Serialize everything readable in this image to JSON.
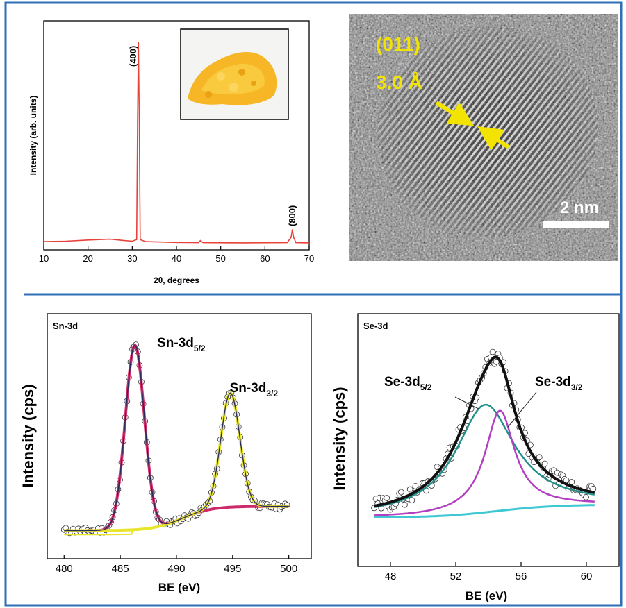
{
  "chart_data": [
    {
      "panel": "xrd",
      "type": "line",
      "xlabel": "2θ, degrees",
      "ylabel": "Intensity (arb. units)",
      "xlim": [
        10,
        70
      ],
      "xticks": [
        10,
        20,
        30,
        40,
        50,
        60,
        70
      ],
      "annotations": [
        {
          "text": "(400)",
          "x": 31.4
        },
        {
          "text": "(800)",
          "x": 66.2
        }
      ],
      "series": [
        {
          "color": "#e8413a",
          "x": [
            10,
            15,
            20,
            25,
            28,
            30,
            31,
            31.2,
            31.4,
            31.6,
            31.8,
            33,
            40,
            45,
            45.4,
            46,
            55,
            65,
            65.9,
            66.2,
            66.5,
            67,
            70
          ],
          "y": [
            2,
            2.2,
            2.8,
            3.2,
            2.6,
            2.2,
            3,
            60,
            100,
            60,
            3,
            2,
            1.6,
            1.5,
            2.5,
            1.5,
            1.4,
            1.5,
            4,
            8,
            4,
            1.5,
            1.4
          ]
        }
      ],
      "inset": {
        "content": "yellow SnSe powder photograph"
      }
    },
    {
      "panel": "tem",
      "type": "image",
      "annotations": [
        "(011)",
        "3.0 Å"
      ],
      "scalebar": "2 nm"
    },
    {
      "panel": "sn3d",
      "type": "scatter",
      "title": "Sn-3d",
      "xlabel": "BE (eV)",
      "ylabel": "Intensity (cps)",
      "xlim": [
        478.5,
        502
      ],
      "xticks": [
        480,
        485,
        490,
        495,
        500
      ],
      "peak_labels": [
        {
          "main": "Sn-3d",
          "sub": "5/2",
          "x": 486.3
        },
        {
          "main": "Sn-3d",
          "sub": "3/2",
          "x": 494.8
        }
      ],
      "background": {
        "a": 6,
        "b": 20,
        "step": 10,
        "center": 490.5,
        "width": 1.3
      },
      "peaks": [
        {
          "name": "Sn-3d5/2",
          "center": 486.3,
          "height": 152,
          "sigma": 0.85,
          "color": "#cc2b6a"
        },
        {
          "name": "Sn-3d3/2",
          "center": 494.8,
          "height": 94,
          "sigma": 0.85,
          "color": "#e8e62a"
        }
      ],
      "envelope_color": "#2b2b5e",
      "background_color": "#e8e62a",
      "background2_color": "#b43ad0"
    },
    {
      "panel": "se3d",
      "type": "scatter",
      "title": "Se-3d",
      "xlabel": "BE (eV)",
      "ylabel": "Intensity (cps)",
      "xlim": [
        46,
        62
      ],
      "xticks": [
        48,
        52,
        56,
        60
      ],
      "peak_labels": [
        {
          "main": "Se-3d",
          "sub": "5/2",
          "x": 53.8
        },
        {
          "main": "Se-3d",
          "sub": "3/2",
          "x": 54.7
        }
      ],
      "background": {
        "a": 5,
        "b": 20,
        "step": 12,
        "center": 54.5,
        "width": 1.8
      },
      "peaks": [
        {
          "name": "Se-3d5/2",
          "center": 53.8,
          "height": 100,
          "hwhm": 2.2,
          "color": "#22908a"
        },
        {
          "name": "Se-3d3/2",
          "center": 54.7,
          "height": 93,
          "hwhm": 1.1,
          "color": "#b13fc0"
        }
      ],
      "envelope_color": "#111111",
      "background_color": "#3fc8d4"
    }
  ]
}
